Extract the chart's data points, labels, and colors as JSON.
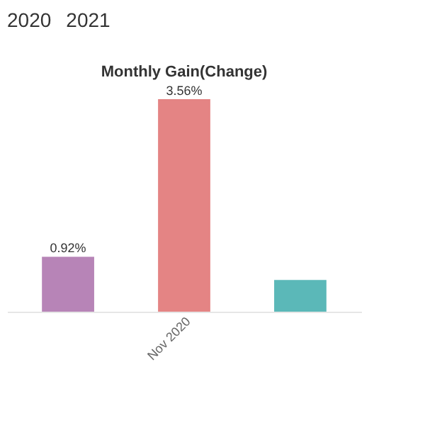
{
  "chart_data": {
    "type": "bar",
    "title": "Monthly Gain(Change)",
    "annotations": [
      "2020",
      "2021"
    ],
    "categories": [
      null,
      "Nov 2020",
      null
    ],
    "values": [
      0.92,
      3.56,
      0.53
    ],
    "value_labels": [
      "0.92%",
      "3.56%",
      null
    ],
    "colors": [
      "#b784b7",
      "#e48484",
      "#5bb8b8"
    ],
    "grid": false
  }
}
